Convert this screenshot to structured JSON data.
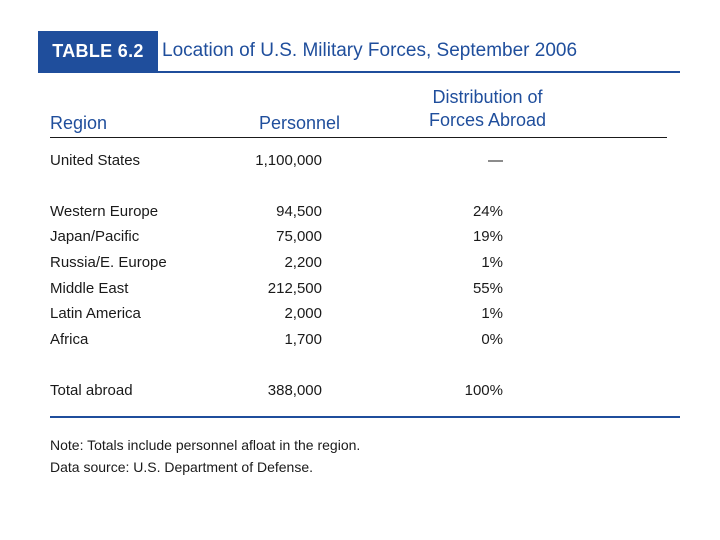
{
  "table": {
    "label": "TABLE 6.2",
    "title": "Location of U.S. Military Forces, September 2006",
    "headers": {
      "region": "Region",
      "personnel": "Personnel",
      "distribution_line1": "Distribution of",
      "distribution_line2": "Forces Abroad"
    },
    "rows": [
      {
        "region": "United States",
        "personnel": "1,100,000",
        "distribution": "—"
      },
      {
        "region": "Western Europe",
        "personnel": "94,500",
        "distribution": "24%"
      },
      {
        "region": "Japan/Pacific",
        "personnel": "75,000",
        "distribution": "19%"
      },
      {
        "region": "Russia/E. Europe",
        "personnel": "2,200",
        "distribution": "1%"
      },
      {
        "region": "Middle East",
        "personnel": "212,500",
        "distribution": "55%"
      },
      {
        "region": "Latin America",
        "personnel": "2,000",
        "distribution": "1%"
      },
      {
        "region": "Africa",
        "personnel": "1,700",
        "distribution": "0%"
      },
      {
        "region": "Total abroad",
        "personnel": "388,000",
        "distribution": "100%"
      }
    ],
    "notes": {
      "note": "Note: Totals include personnel afloat in the region.",
      "source": "Data source: U.S. Department of Defense."
    }
  },
  "colors": {
    "accent": "#1f4e9c",
    "text": "#1a1a1a"
  }
}
